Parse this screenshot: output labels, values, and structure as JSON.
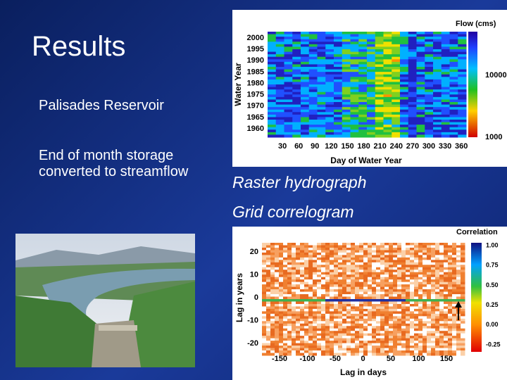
{
  "slide": {
    "title": "Results",
    "bullets": [
      "Palisades Reservoir",
      "End of month storage converted to streamflow"
    ],
    "captions": [
      "Raster hydrograph",
      "Grid correlogram"
    ]
  },
  "raster_hydrograph": {
    "y_label": "Water Year",
    "x_label": "Day of Water Year",
    "yticks": [
      2000,
      1995,
      1990,
      1985,
      1980,
      1975,
      1970,
      1965,
      1960
    ],
    "xticks": [
      30,
      60,
      90,
      120,
      150,
      180,
      210,
      240,
      270,
      300,
      330,
      360
    ],
    "colorbar_title": "Flow (cms)",
    "colorbar_ticks": [
      10000,
      1000
    ]
  },
  "grid_correlogram": {
    "y_label": "Lag in years",
    "x_label": "Lag in days",
    "yticks": [
      20,
      10,
      0,
      -10,
      -20
    ],
    "xticks": [
      -150,
      -100,
      -50,
      0,
      50,
      100,
      150
    ],
    "colorbar_title": "Correlation",
    "colorbar_ticks": [
      "1.00",
      "0.75",
      "0.50",
      "0.25",
      "0.00",
      "-0.25"
    ]
  }
}
